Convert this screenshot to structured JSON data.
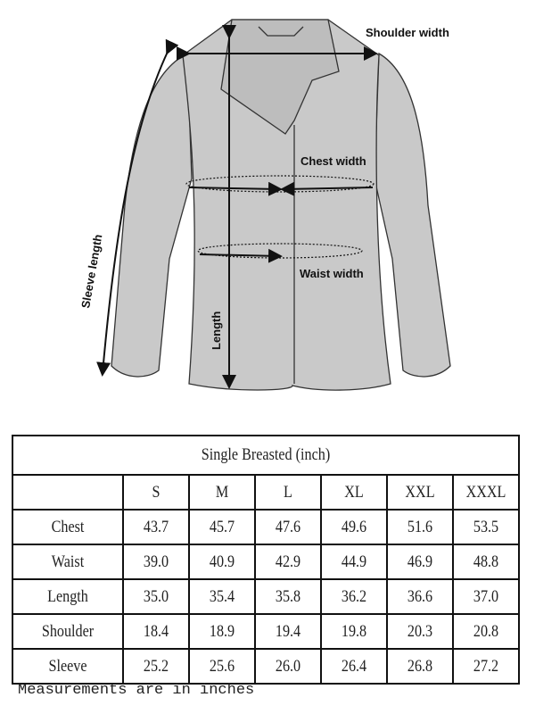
{
  "illustration": {
    "labels": {
      "shoulder": "Shoulder width",
      "chest": "Chest width",
      "waist": "Waist width",
      "length": "Length",
      "sleeve": "Sleeve length"
    },
    "fill_color": "#c9c9c9",
    "line_color": "#222222"
  },
  "table": {
    "title": "Single Breasted (inch)",
    "sizes": [
      "S",
      "M",
      "L",
      "XL",
      "XXL",
      "XXXL"
    ],
    "rows": [
      {
        "label": "Chest",
        "values": [
          "43.7",
          "45.7",
          "47.6",
          "49.6",
          "51.6",
          "53.5"
        ]
      },
      {
        "label": "Waist",
        "values": [
          "39.0",
          "40.9",
          "42.9",
          "44.9",
          "46.9",
          "48.8"
        ]
      },
      {
        "label": "Length",
        "values": [
          "35.0",
          "35.4",
          "35.8",
          "36.2",
          "36.6",
          "37.0"
        ]
      },
      {
        "label": "Shoulder",
        "values": [
          "18.4",
          "18.9",
          "19.4",
          "19.8",
          "20.3",
          "20.8"
        ]
      },
      {
        "label": "Sleeve",
        "values": [
          "25.2",
          "25.6",
          "26.0",
          "26.4",
          "26.8",
          "27.2"
        ]
      }
    ]
  },
  "footnote": "Measurements are in inches"
}
